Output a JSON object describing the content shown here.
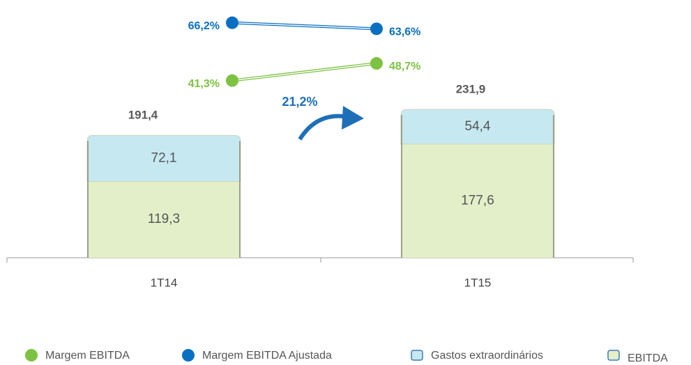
{
  "chart_data": {
    "type": "bar",
    "categories": [
      "1T14",
      "1T15"
    ],
    "series": [
      {
        "name": "EBITDA",
        "color": "#e3efc8",
        "values": [
          119.3,
          177.6
        ],
        "value_labels": [
          "119,3",
          "177,6"
        ]
      },
      {
        "name": "Gastos extraordinários",
        "color": "#c6e8f1",
        "values": [
          72.1,
          54.4
        ],
        "value_labels": [
          "72,1",
          "54,4"
        ]
      },
      {
        "name": "Margem EBITDA",
        "type": "line",
        "axis": "y2",
        "color": "#7dc242",
        "values": [
          41.3,
          48.7
        ],
        "value_labels": [
          "41,3%",
          "48,7%"
        ]
      },
      {
        "name": "Margem EBITDA Ajustada",
        "type": "line",
        "axis": "y2",
        "color": "#0a6fc2",
        "values": [
          66.2,
          63.6
        ],
        "value_labels": [
          "66,2%",
          "63,6%"
        ]
      }
    ],
    "totals": {
      "values": [
        191.4,
        231.9
      ],
      "value_labels": [
        "191,4",
        "231,9"
      ]
    },
    "annotation": "21,2%",
    "ylim": [
      0,
      392
    ],
    "y2lim": [
      -35,
      73
    ],
    "stacked": true
  }
}
